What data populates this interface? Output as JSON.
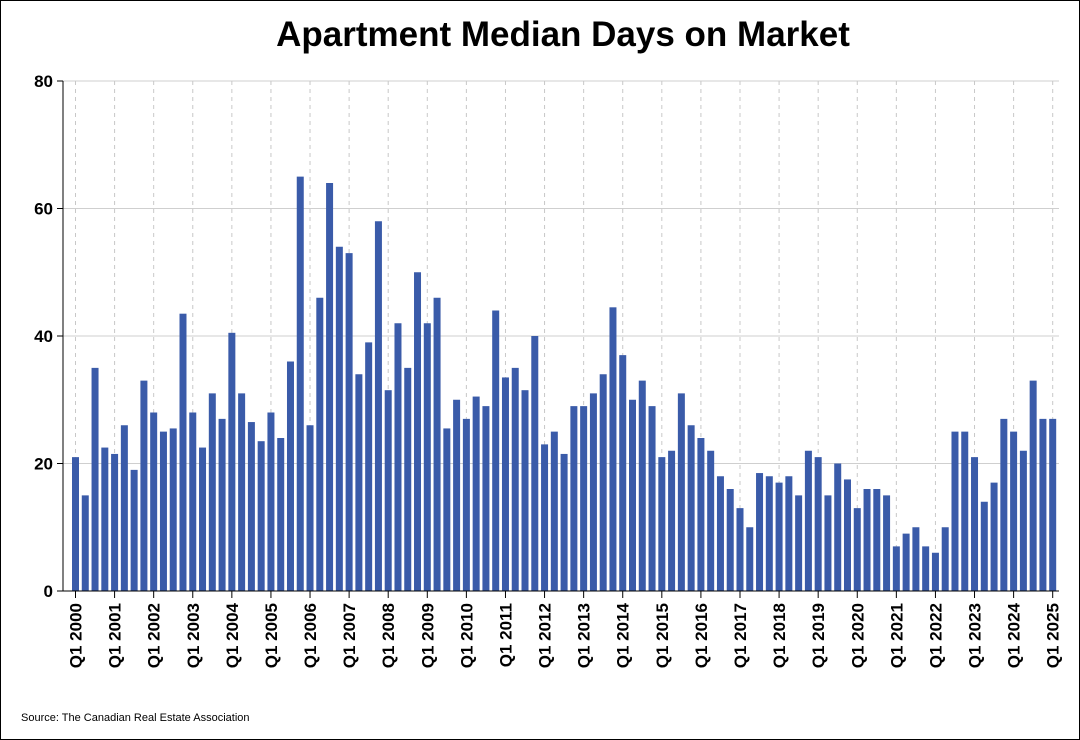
{
  "chart_data": {
    "type": "bar",
    "title": "Apartment Median Days on Market",
    "xlabel": "",
    "ylabel": "",
    "ylim": [
      0,
      80
    ],
    "y_ticks": [
      0,
      20,
      40,
      60,
      80
    ],
    "grid": "horizontal solid, vertical dashed at year ticks",
    "x_tick_labels": [
      "Q1 2000",
      "Q1 2001",
      "Q1 2002",
      "Q1 2003",
      "Q1 2004",
      "Q1 2005",
      "Q1 2006",
      "Q1 2007",
      "Q1 2008",
      "Q1 2009",
      "Q1 2010",
      "Q1 2011",
      "Q1 2012",
      "Q1 2013",
      "Q1 2014",
      "Q1 2015",
      "Q1 2016",
      "Q1 2017",
      "Q1 2018",
      "Q1 2019",
      "Q1 2020",
      "Q1 2021",
      "Q1 2022",
      "Q1 2023",
      "Q1 2024",
      "Q1 2025"
    ],
    "categories": [
      "Q1 2000",
      "Q2 2000",
      "Q3 2000",
      "Q4 2000",
      "Q1 2001",
      "Q2 2001",
      "Q3 2001",
      "Q4 2001",
      "Q1 2002",
      "Q2 2002",
      "Q3 2002",
      "Q4 2002",
      "Q1 2003",
      "Q2 2003",
      "Q3 2003",
      "Q4 2003",
      "Q1 2004",
      "Q2 2004",
      "Q3 2004",
      "Q4 2004",
      "Q1 2005",
      "Q2 2005",
      "Q3 2005",
      "Q4 2005",
      "Q1 2006",
      "Q2 2006",
      "Q3 2006",
      "Q4 2006",
      "Q1 2007",
      "Q2 2007",
      "Q3 2007",
      "Q4 2007",
      "Q1 2008",
      "Q2 2008",
      "Q3 2008",
      "Q4 2008",
      "Q1 2009",
      "Q2 2009",
      "Q3 2009",
      "Q4 2009",
      "Q1 2010",
      "Q2 2010",
      "Q3 2010",
      "Q4 2010",
      "Q1 2011",
      "Q2 2011",
      "Q3 2011",
      "Q4 2011",
      "Q1 2012",
      "Q2 2012",
      "Q3 2012",
      "Q4 2012",
      "Q1 2013",
      "Q2 2013",
      "Q3 2013",
      "Q4 2013",
      "Q1 2014",
      "Q2 2014",
      "Q3 2014",
      "Q4 2014",
      "Q1 2015",
      "Q2 2015",
      "Q3 2015",
      "Q4 2015",
      "Q1 2016",
      "Q2 2016",
      "Q3 2016",
      "Q4 2016",
      "Q1 2017",
      "Q2 2017",
      "Q3 2017",
      "Q4 2017",
      "Q1 2018",
      "Q2 2018",
      "Q3 2018",
      "Q4 2018",
      "Q1 2019",
      "Q2 2019",
      "Q3 2019",
      "Q4 2019",
      "Q1 2020",
      "Q2 2020",
      "Q3 2020",
      "Q4 2020",
      "Q1 2021",
      "Q2 2021",
      "Q3 2021",
      "Q4 2021",
      "Q1 2022",
      "Q2 2022",
      "Q3 2022",
      "Q4 2022",
      "Q1 2023",
      "Q2 2023",
      "Q3 2023",
      "Q4 2023",
      "Q1 2024",
      "Q2 2024",
      "Q3 2024",
      "Q4 2024",
      "Q1 2025"
    ],
    "values": [
      21,
      15,
      35,
      22.5,
      21.5,
      26,
      19,
      33,
      28,
      25,
      25.5,
      43.5,
      28,
      22.5,
      31,
      27,
      40.5,
      31,
      26.5,
      23.5,
      28,
      24,
      36,
      65,
      26,
      46,
      64,
      54,
      53,
      34,
      39,
      58,
      31.5,
      42,
      35,
      50,
      42,
      46,
      25.5,
      30,
      27,
      30.5,
      29,
      44,
      33.5,
      35,
      31.5,
      40,
      23,
      25,
      21.5,
      29,
      29,
      31,
      34,
      44.5,
      37,
      30,
      33,
      29,
      21,
      22,
      31,
      26,
      24,
      22,
      18,
      16,
      13,
      10,
      18.5,
      18,
      17,
      18,
      15,
      22,
      21,
      15,
      20,
      17.5,
      13,
      16,
      16,
      15,
      7,
      9,
      10,
      7,
      6,
      10,
      25,
      25,
      21,
      14,
      17,
      27,
      25,
      22,
      33,
      27,
      27
    ],
    "bar_color": "#3a5ba9"
  },
  "source": "Source: The Canadian Real Estate Association"
}
